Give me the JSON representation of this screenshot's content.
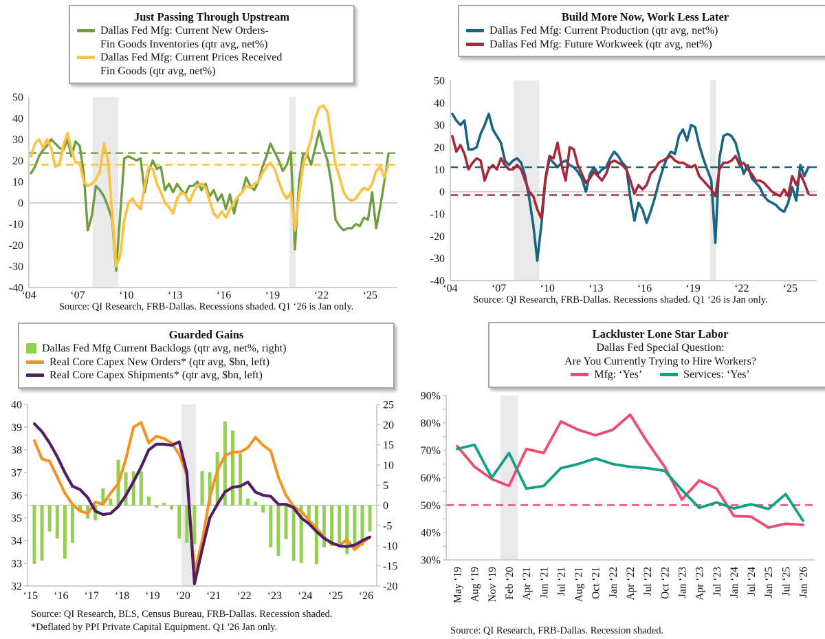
{
  "palette": {
    "recession_band": "#e9e9e9",
    "axis": "#bfbfbf",
    "zero_line": "#c9c9c9",
    "text": "#111111"
  },
  "chart_data": [
    {
      "type": "line",
      "title": "Just Passing Through Upstream",
      "legend": [
        {
          "label": [
            "Dallas Fed Mfg: Current New Orders-",
            "Fin Goods Inventories (qtr avg, net%)"
          ],
          "color": "#6f9e42",
          "swatch": "line"
        },
        {
          "label": [
            "Dallas Fed Mfg: Current Prices Received",
            "Fin Goods (qtr avg, net%)"
          ],
          "color": "#fcc245",
          "swatch": "line"
        }
      ],
      "x": {
        "start": 2004.125,
        "step": 0.25,
        "range": [
          2004,
          2026.68
        ],
        "tick_values": [
          2004,
          2007,
          2010,
          2013,
          2016,
          2019,
          2022,
          2025
        ],
        "tick_labels": [
          "‘04",
          "‘07",
          "‘10",
          "‘13",
          "‘16",
          "‘19",
          "‘22",
          "‘25"
        ]
      },
      "y": {
        "min": -40,
        "max": 50,
        "values": [
          50,
          40,
          30,
          20,
          10,
          0,
          -10,
          -20,
          -30,
          -40
        ],
        "labels": [
          "50",
          "40",
          "30",
          "20",
          "10",
          "0",
          "-10",
          "-20",
          "-30",
          "-40"
        ]
      },
      "zero_on": "left",
      "recessions": [
        [
          2007.92,
          2009.5
        ],
        [
          2020.04,
          2020.42
        ]
      ],
      "dashed_lines": [
        {
          "name": "new-orders-inventories-average",
          "value": 23.5,
          "color": "#6f9e42"
        },
        {
          "name": "prices-received-average",
          "value": 18,
          "color": "#fcc245"
        }
      ],
      "series": [
        {
          "name": "Dallas Fed Mfg: Current New Orders-Fin Goods Inventories (qtr avg, net%)",
          "color": "#6f9e42",
          "width": 3.4,
          "values": [
            14,
            17,
            22,
            25,
            27,
            30,
            28,
            26,
            25,
            30,
            22,
            29,
            27,
            14,
            -13,
            -6,
            8,
            6,
            3,
            -2,
            -8,
            -32,
            -5,
            21,
            22,
            21,
            20,
            21,
            5,
            15,
            20,
            16,
            17,
            6,
            9,
            5,
            9,
            6,
            4,
            8,
            8,
            10,
            6,
            9,
            3,
            6,
            1,
            4,
            -3,
            4,
            -5,
            3,
            5,
            12,
            8,
            6,
            10,
            17,
            22,
            28,
            24,
            20,
            15,
            18,
            24,
            -22,
            10,
            23,
            23,
            18,
            26,
            34,
            26,
            20,
            9,
            -8,
            -11,
            -13,
            -12,
            -12,
            -10,
            -11,
            -7,
            -8,
            5,
            -12,
            -2,
            10,
            23
          ]
        },
        {
          "name": "Dallas Fed Mfg: Current Prices Received Fin Goods (qtr avg, net%)",
          "color": "#fcc245",
          "width": 3.8,
          "values": [
            22,
            28,
            30,
            26,
            30,
            26,
            17,
            18,
            27,
            33,
            25,
            19,
            19,
            10,
            8,
            9,
            11,
            15,
            28,
            20,
            -5,
            -30,
            -25,
            -8,
            0,
            2,
            -1,
            -3,
            8,
            17,
            16,
            9,
            5,
            0,
            -2,
            -5,
            2,
            5,
            4,
            0,
            5,
            8,
            9,
            7,
            1,
            -5,
            -7,
            -4,
            -7,
            -3,
            0,
            3,
            5,
            8,
            7,
            9,
            10,
            14,
            17,
            19,
            16,
            10,
            5,
            2,
            5,
            -13,
            3,
            18,
            24,
            30,
            40,
            45,
            46,
            43,
            30,
            18,
            12,
            5,
            2,
            1,
            2,
            5,
            7,
            6,
            9,
            15,
            17,
            12,
            18
          ]
        }
      ],
      "source": "Source: QI Research, FRB-Dallas. Recessions shaded. Q1 ‘26 is Jan only."
    },
    {
      "type": "line",
      "title": "Build More Now, Work Less Later",
      "legend": [
        {
          "label": [
            "Dallas Fed Mfg: Current Production (qtr avg, net%)"
          ],
          "color": "#176483",
          "swatch": "line"
        },
        {
          "label": [
            "Dallas Fed Mfg: Future Workweek (qtr avg, net%)"
          ],
          "color": "#a72837",
          "swatch": "line"
        }
      ],
      "x": {
        "start": 2004.125,
        "step": 0.25,
        "range": [
          2004,
          2026.64
        ],
        "tick_values": [
          2004,
          2007,
          2010,
          2013,
          2016,
          2019,
          2022,
          2025
        ],
        "tick_labels": [
          "‘04",
          "‘07",
          "‘10",
          "‘13",
          "‘16",
          "‘19",
          "‘22",
          "‘25"
        ]
      },
      "y": {
        "min": -40,
        "max": 50,
        "values": [
          50,
          40,
          30,
          20,
          10,
          0,
          -10,
          -20,
          -30,
          -40
        ],
        "labels": [
          "50",
          "40",
          "30",
          "20",
          "10",
          "0",
          "-10",
          "-20",
          "-30",
          "-40"
        ]
      },
      "zero_on": "left",
      "recessions": [
        [
          2007.92,
          2009.5
        ],
        [
          2020.04,
          2020.42
        ]
      ],
      "dashed_lines": [
        {
          "name": "current-production-average",
          "value": 11,
          "color": "#176483"
        },
        {
          "name": "future-workweek-average",
          "value": -1.5,
          "color": "#a72837"
        }
      ],
      "series": [
        {
          "name": "Dallas Fed Mfg: Current Production (qtr avg, net%)",
          "color": "#176483",
          "width": 3.6,
          "values": [
            35,
            32,
            30,
            32,
            19,
            19,
            20,
            26,
            30,
            35,
            28,
            25,
            22,
            14,
            12,
            14,
            15,
            13,
            7,
            -3,
            -15,
            -31,
            -15,
            5,
            15,
            13,
            11,
            13,
            14,
            12,
            11,
            9,
            6,
            0,
            8,
            11,
            8,
            10,
            11,
            15,
            18,
            16,
            13,
            11,
            -3,
            -13,
            -5,
            -8,
            -14,
            -9,
            -3,
            4,
            10,
            15,
            18,
            17,
            25,
            28,
            23,
            30,
            29,
            21,
            15,
            10,
            5,
            -23,
            15,
            25,
            26,
            25,
            22,
            15,
            8,
            12,
            6,
            4,
            2,
            -2,
            -4,
            -5,
            -6,
            -8,
            -9,
            -5,
            2,
            -4,
            12,
            7,
            11
          ]
        },
        {
          "name": "Dallas Fed Mfg: Future Workweek (qtr avg, net%)",
          "color": "#a72837",
          "width": 3.6,
          "values": [
            25,
            18,
            21,
            17,
            10,
            13,
            15,
            14,
            5,
            10,
            12,
            10,
            15,
            12,
            10,
            10,
            12,
            10,
            5,
            0,
            -2,
            -8,
            -12,
            6,
            16,
            15,
            22,
            12,
            5,
            20,
            19,
            12,
            8,
            4,
            6,
            9,
            7,
            5,
            8,
            13,
            14,
            13,
            12,
            10,
            5,
            -1,
            3,
            1,
            3,
            8,
            10,
            13,
            14,
            15,
            16,
            14,
            13,
            13,
            12,
            11,
            12,
            7,
            5,
            3,
            1,
            -2,
            10,
            13,
            13,
            14,
            16,
            12,
            13,
            10,
            8,
            5,
            5,
            4,
            2,
            0,
            -1,
            -2,
            1,
            -2,
            7,
            3,
            8,
            4,
            -1
          ]
        }
      ],
      "source": "Source: QI Research, FRB-Dallas. Recessions shaded. Q1 ‘26 is Jan only."
    },
    {
      "type": "mixed",
      "title": "Guarded Gains",
      "legend": [
        {
          "label": [
            "Dallas Fed Mfg Current Backlogs (qtr avg, net%, right)"
          ],
          "color": "#92d050",
          "swatch": "square"
        },
        {
          "label": [
            "Real Core Capex New Orders* (qtr avg, $bn, left)"
          ],
          "color": "#f6901e",
          "swatch": "line"
        },
        {
          "label": [
            "Real Core Capex Shipments* (qtr avg, $bn, left)"
          ],
          "color": "#521e63",
          "swatch": "line"
        }
      ],
      "x": {
        "start": 2015.125,
        "step": 0.25,
        "range": [
          2014.9,
          2026.35
        ],
        "tick_values": [
          2015,
          2016,
          2017,
          2018,
          2019,
          2020,
          2021,
          2022,
          2023,
          2024,
          2025,
          2026
        ],
        "tick_labels": [
          "‘15",
          "‘16",
          "‘17",
          "‘18",
          "‘19",
          "‘20",
          "‘21",
          "‘22",
          "‘23",
          "‘24",
          "‘25",
          "‘26"
        ]
      },
      "y": {
        "min": 32,
        "max": 40,
        "values": [
          40,
          39,
          38,
          37,
          36,
          35,
          34,
          33,
          32
        ],
        "labels": [
          "40",
          "39",
          "38",
          "37",
          "36",
          "35",
          "34",
          "33",
          "32"
        ]
      },
      "y2": {
        "min": -20,
        "max": 25,
        "values": [
          25,
          20,
          15,
          10,
          5,
          0,
          -5,
          -10,
          -15,
          -20
        ],
        "labels": [
          "25",
          "20",
          "15",
          "10",
          "5",
          "0",
          "-5",
          "-10",
          "-15",
          "-20"
        ]
      },
      "zero_on": "right",
      "recessions": [
        [
          2019.95,
          2020.42
        ]
      ],
      "bars": {
        "name": "Dallas Fed Mfg Current Backlogs (qtr avg, net%, right)",
        "color": "#92d050",
        "axis": "right",
        "values": [
          -14.5,
          -13.7,
          -6.5,
          -8.2,
          -13.2,
          -9.3,
          -1.4,
          -3.3,
          -3.7,
          4.2,
          1.7,
          11.3,
          8.2,
          8.4,
          8.4,
          2.2,
          -0.6,
          0.6,
          -1.1,
          -8.2,
          -9.3,
          -9.6,
          8.5,
          8.2,
          13.2,
          20.8,
          18.5,
          12.8,
          1.7,
          0.9,
          -1.8,
          -10.4,
          -12.5,
          -8.4,
          -13.8,
          -14.3,
          -3.6,
          -14.6,
          -10.4,
          -10.1,
          -9.4,
          -12.1,
          -10.5,
          -10.0,
          -6.5
        ]
      },
      "series": [
        {
          "name": "Real Core Capex New Orders* (qtr avg, $bn, left)",
          "color": "#f6901e",
          "width": 4,
          "values": [
            38.4,
            37.6,
            37.5,
            36.8,
            36.1,
            35.6,
            35.3,
            35.2,
            35.7,
            35.6,
            36.1,
            36.5,
            37.6,
            39.0,
            39.2,
            38.3,
            38.6,
            38.5,
            38.3,
            37.8,
            36.9,
            32.6,
            34.0,
            35.9,
            37.1,
            37.75,
            37.9,
            37.9,
            38.1,
            38.55,
            38.2,
            37.95,
            36.8,
            36.0,
            35.5,
            35.3,
            34.9,
            34.55,
            34.15,
            33.85,
            33.8,
            34.05,
            33.6,
            33.9,
            34.15
          ]
        },
        {
          "name": "Real Core Capex Shipments* (qtr avg, $bn, left)",
          "color": "#521e63",
          "width": 4.2,
          "values": [
            39.15,
            38.8,
            38.3,
            37.7,
            37.0,
            36.4,
            36.25,
            35.9,
            35.3,
            35.15,
            35.2,
            35.5,
            36.0,
            36.6,
            37.25,
            38.0,
            38.25,
            38.25,
            38.2,
            38.35,
            37.0,
            32.1,
            33.6,
            35.0,
            35.6,
            36.15,
            36.35,
            36.4,
            36.58,
            36.14,
            36.0,
            35.95,
            35.6,
            35.6,
            35.45,
            35.0,
            34.75,
            34.4,
            34.1,
            33.9,
            33.77,
            33.74,
            33.8,
            34.0,
            34.16
          ]
        }
      ],
      "source_lines": [
        "Source: QI Research, BLS, Census Bureau, FRB-Dallas. Recession shaded.",
        "*Deflated by PPI Private Capital Equipment. Q1 '26 Jan only."
      ]
    },
    {
      "type": "line",
      "title": "Lackluster Lone Star Labor",
      "subtitle_lines": [
        "Dallas Fed Special Question:",
        "Are You Currently Trying to Hire Workers?"
      ],
      "legend": [
        {
          "label": [
            "Mfg: ‘Yes’"
          ],
          "color": "#ee4a6f",
          "swatch": "line"
        },
        {
          "label": [
            "Services: ‘Yes’"
          ],
          "color": "#10a184",
          "swatch": "line"
        }
      ],
      "x": {
        "categories": [
          "May ‘19",
          "Aug ‘19",
          "Nov ‘19",
          "Feb ‘20",
          "Apr ‘21",
          "Jun ‘21",
          "Jul ‘21",
          "Aug ‘21",
          "Oct ‘21",
          "Jan ‘22",
          "Apr ‘22",
          "Jul ‘22",
          "Oct ‘22",
          "Jan ‘23",
          "Apr ‘23",
          "Jul ‘23",
          "Jan ‘24",
          "Jul ‘24",
          "Jan ‘25",
          "Jul ‘25",
          "Jan ‘26"
        ]
      },
      "y": {
        "min": 30,
        "max": 90,
        "values": [
          90,
          80,
          70,
          60,
          50,
          40,
          30
        ],
        "labels": [
          "90%",
          "80%",
          "70%",
          "60%",
          "50%",
          "40%",
          "30%"
        ]
      },
      "recessions": [
        [
          2.5,
          3.5
        ]
      ],
      "dashed_lines": [
        {
          "name": "fifty-percent-reference",
          "value": 50,
          "color": "#ee4a6f"
        }
      ],
      "series": [
        {
          "name": "Mfg: 'Yes'",
          "color": "#ee4a6f",
          "width": 3.8,
          "values": [
            71.5,
            64,
            59.5,
            57,
            70.5,
            69,
            80.5,
            77.5,
            75.5,
            77.5,
            83,
            73,
            64,
            52,
            59,
            56,
            46,
            45.8,
            41.8,
            43.2,
            42.8
          ]
        },
        {
          "name": "Services: 'Yes'",
          "color": "#10a184",
          "width": 3.8,
          "values": [
            70.5,
            72,
            60,
            69,
            56,
            57,
            63.5,
            65,
            67,
            65,
            64,
            63.5,
            62.5,
            55.5,
            49,
            51,
            48.8,
            50.3,
            48.6,
            54,
            44.3
          ]
        }
      ],
      "source": "Source: QI Research, FRB-Dallas. Recession shaded."
    }
  ]
}
